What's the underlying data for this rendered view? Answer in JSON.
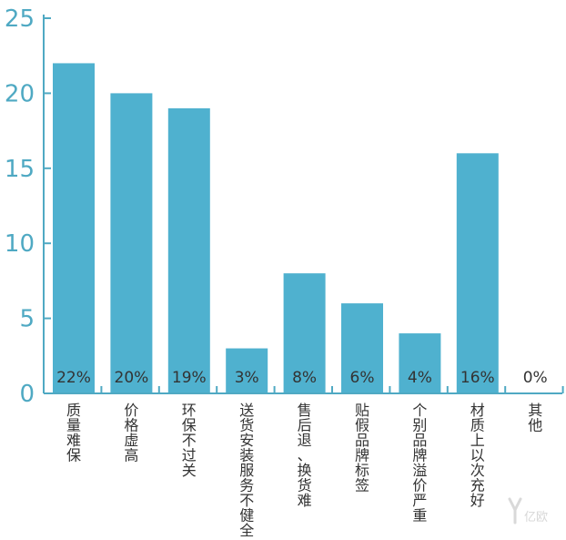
{
  "chart_data": {
    "type": "bar",
    "title": "",
    "xlabel": "",
    "ylabel": "",
    "ylim": [
      0,
      25
    ],
    "yticks": [
      0,
      5,
      10,
      15,
      20,
      25
    ],
    "categories": [
      "质量难保",
      "价格虚高",
      "环保不过关",
      "送货安装服务不健全",
      "售后退、换货难",
      "贴假品牌标签",
      "个别品牌溢价严重",
      "材质上以次充好",
      "其他"
    ],
    "values": [
      22,
      20,
      19,
      3,
      8,
      6,
      4,
      16,
      0
    ],
    "data_labels": [
      "22%",
      "20%",
      "19%",
      "3%",
      "8%",
      "6%",
      "4%",
      "16%",
      "0%"
    ],
    "grid": false,
    "legend": "none",
    "colors": {
      "bar": "#4fb1cf",
      "axis": "#4fa9c3",
      "text": "#333333"
    }
  },
  "watermark": {
    "text": "亿欧"
  }
}
